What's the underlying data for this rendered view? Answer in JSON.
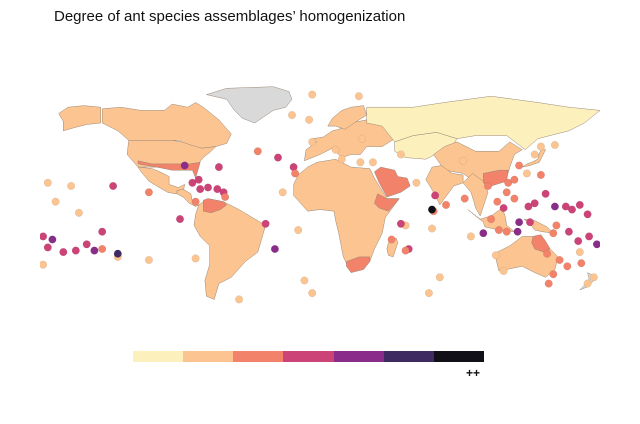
{
  "title": "Degree of ant species assemblages’ homogenization",
  "legend": {
    "colors": [
      "#fcf0bd",
      "#fbc490",
      "#f2826a",
      "#cc4477",
      "#8a2d8a",
      "#3f2b62",
      "#111018"
    ],
    "max_label": "++"
  },
  "map_colors": {
    "ocean": "#ffffff",
    "no_data": "#d9d9d9",
    "border": "#9a8878"
  },
  "regions": [
    {
      "name": "canada",
      "level": 1
    },
    {
      "name": "alaska",
      "level": 1
    },
    {
      "name": "greenland",
      "level": -1
    },
    {
      "name": "usa",
      "level": 1
    },
    {
      "name": "us-south",
      "level": 2
    },
    {
      "name": "mexico",
      "level": 1
    },
    {
      "name": "central-america",
      "level": 1
    },
    {
      "name": "south-america",
      "level": 1
    },
    {
      "name": "venezuela-colombia",
      "level": 2
    },
    {
      "name": "europe",
      "level": 1
    },
    {
      "name": "scandinavia",
      "level": 1
    },
    {
      "name": "africa",
      "level": 1
    },
    {
      "name": "arabia",
      "level": 2
    },
    {
      "name": "east-africa",
      "level": 2
    },
    {
      "name": "south-africa",
      "level": 2
    },
    {
      "name": "madagascar",
      "level": 1
    },
    {
      "name": "russia",
      "level": 0
    },
    {
      "name": "central-asia",
      "level": 0
    },
    {
      "name": "china",
      "level": 1
    },
    {
      "name": "india",
      "level": 1
    },
    {
      "name": "southeast-asia",
      "level": 1
    },
    {
      "name": "south-china",
      "level": 2
    },
    {
      "name": "japan",
      "level": 1
    },
    {
      "name": "indonesia",
      "level": 1
    },
    {
      "name": "new-guinea",
      "level": 1
    },
    {
      "name": "australia",
      "level": 1
    },
    {
      "name": "north-australia",
      "level": 2
    },
    {
      "name": "new-zealand",
      "level": -1
    }
  ],
  "islands": [
    {
      "lon": -5,
      "lat": 78,
      "level": 1
    },
    {
      "lon": 25,
      "lat": 77,
      "level": 1
    },
    {
      "lon": -18,
      "lat": 65,
      "level": 1
    },
    {
      "lon": -7,
      "lat": 62,
      "level": 1
    },
    {
      "lon": -65,
      "lat": 32,
      "level": 3
    },
    {
      "lon": -27,
      "lat": 38,
      "level": 3
    },
    {
      "lon": -17,
      "lat": 32,
      "level": 3
    },
    {
      "lon": -16,
      "lat": 28,
      "level": 2
    },
    {
      "lon": -24,
      "lat": 16,
      "level": 1
    },
    {
      "lon": -40,
      "lat": 42,
      "level": 2
    },
    {
      "lon": -160,
      "lat": 20,
      "level": 1
    },
    {
      "lon": -175,
      "lat": 22,
      "level": 1
    },
    {
      "lon": -170,
      "lat": 10,
      "level": 1
    },
    {
      "lon": -155,
      "lat": 3,
      "level": 1
    },
    {
      "lon": -133,
      "lat": 20,
      "level": 3
    },
    {
      "lon": -110,
      "lat": 16,
      "level": 2
    },
    {
      "lon": -87,
      "lat": 33,
      "level": 4
    },
    {
      "lon": -78,
      "lat": 24,
      "level": 3
    },
    {
      "lon": -82,
      "lat": 22,
      "level": 3
    },
    {
      "lon": -77,
      "lat": 18,
      "level": 3
    },
    {
      "lon": -72,
      "lat": 19,
      "level": 3
    },
    {
      "lon": -66,
      "lat": 18,
      "level": 3
    },
    {
      "lon": -62,
      "lat": 16,
      "level": 3
    },
    {
      "lon": -61,
      "lat": 13,
      "level": 2
    },
    {
      "lon": -80,
      "lat": 10,
      "level": 2
    },
    {
      "lon": -90,
      "lat": -1,
      "level": 3
    },
    {
      "lon": -80,
      "lat": -26,
      "level": 1
    },
    {
      "lon": -110,
      "lat": -27,
      "level": 1
    },
    {
      "lon": -130,
      "lat": -25,
      "level": 1
    },
    {
      "lon": -140,
      "lat": -9,
      "level": 3
    },
    {
      "lon": -150,
      "lat": -17,
      "level": 3
    },
    {
      "lon": -157,
      "lat": -21,
      "level": 3
    },
    {
      "lon": -172,
      "lat": -14,
      "level": 4
    },
    {
      "lon": -175,
      "lat": -19,
      "level": 3
    },
    {
      "lon": -178,
      "lat": -12,
      "level": 3
    },
    {
      "lon": -178,
      "lat": -30,
      "level": 1
    },
    {
      "lon": -165,
      "lat": -22,
      "level": 3
    },
    {
      "lon": -145,
      "lat": -21,
      "level": 4
    },
    {
      "lon": -130,
      "lat": -23,
      "level": 5
    },
    {
      "lon": -140,
      "lat": -20,
      "level": 2
    },
    {
      "lon": -35,
      "lat": -4,
      "level": 3
    },
    {
      "lon": -29,
      "lat": -20,
      "level": 4
    },
    {
      "lon": -14,
      "lat": -8,
      "level": 1
    },
    {
      "lon": -10,
      "lat": -40,
      "level": 1
    },
    {
      "lon": -5,
      "lat": -48,
      "level": 1
    },
    {
      "lon": -52,
      "lat": -52,
      "level": 1
    },
    {
      "lon": -5,
      "lat": 48,
      "level": 1
    },
    {
      "lon": 10,
      "lat": 43,
      "level": 1
    },
    {
      "lon": 14,
      "lat": 37,
      "level": 1
    },
    {
      "lon": 26,
      "lat": 35,
      "level": 1
    },
    {
      "lon": 34,
      "lat": 35,
      "level": 1
    },
    {
      "lon": 27,
      "lat": 50,
      "level": 1
    },
    {
      "lon": 52,
      "lat": 40,
      "level": 1
    },
    {
      "lon": 62,
      "lat": 22,
      "level": 1
    },
    {
      "lon": 55,
      "lat": -5,
      "level": 1
    },
    {
      "lon": 52,
      "lat": -4,
      "level": 3
    },
    {
      "lon": 46,
      "lat": -14,
      "level": 2
    },
    {
      "lon": 57,
      "lat": -20,
      "level": 3
    },
    {
      "lon": 55,
      "lat": -21,
      "level": 2
    },
    {
      "lon": 73,
      "lat": 4,
      "level": 2
    },
    {
      "lon": 74,
      "lat": 14,
      "level": 3
    },
    {
      "lon": 72,
      "lat": 5,
      "level": 6
    },
    {
      "lon": 81,
      "lat": 8,
      "level": 2
    },
    {
      "lon": 72,
      "lat": -7,
      "level": 1
    },
    {
      "lon": 77,
      "lat": -38,
      "level": 1
    },
    {
      "lon": 70,
      "lat": -48,
      "level": 1
    },
    {
      "lon": 93,
      "lat": 12,
      "level": 2
    },
    {
      "lon": 105,
      "lat": -10,
      "level": 4
    },
    {
      "lon": 97,
      "lat": -12,
      "level": 1
    },
    {
      "lon": 121,
      "lat": 22,
      "level": 2
    },
    {
      "lon": 125,
      "lat": 24,
      "level": 2
    },
    {
      "lon": 133,
      "lat": 28,
      "level": 1
    },
    {
      "lon": 142,
      "lat": 27,
      "level": 2
    },
    {
      "lon": 145,
      "lat": 15,
      "level": 3
    },
    {
      "lon": 138,
      "lat": 9,
      "level": 3
    },
    {
      "lon": 134,
      "lat": 7,
      "level": 3
    },
    {
      "lon": 151,
      "lat": 7,
      "level": 4
    },
    {
      "lon": 158,
      "lat": 7,
      "level": 3
    },
    {
      "lon": 162,
      "lat": 5,
      "level": 3
    },
    {
      "lon": 167,
      "lat": 8,
      "level": 3
    },
    {
      "lon": 172,
      "lat": 2,
      "level": 3
    },
    {
      "lon": 160,
      "lat": -9,
      "level": 3
    },
    {
      "lon": 166,
      "lat": -15,
      "level": 3
    },
    {
      "lon": 167,
      "lat": -22,
      "level": 1
    },
    {
      "lon": 178,
      "lat": -17,
      "level": 4
    },
    {
      "lon": 173,
      "lat": -12,
      "level": 3
    },
    {
      "lon": 159,
      "lat": -31,
      "level": 2
    },
    {
      "lon": 168,
      "lat": -29,
      "level": 2
    },
    {
      "lon": 172,
      "lat": -42,
      "level": 1
    },
    {
      "lon": 176,
      "lat": -38,
      "level": 1
    },
    {
      "lon": 127,
      "lat": -9,
      "level": 4
    },
    {
      "lon": 120,
      "lat": -9,
      "level": 2
    },
    {
      "lon": 115,
      "lat": -8,
      "level": 2
    },
    {
      "lon": 125,
      "lat": 12,
      "level": 2
    },
    {
      "lon": 120,
      "lat": 16,
      "level": 2
    },
    {
      "lon": 114,
      "lat": 10,
      "level": 2
    },
    {
      "lon": 118,
      "lat": 6,
      "level": 3
    },
    {
      "lon": 110,
      "lat": -1,
      "level": 2
    },
    {
      "lon": 152,
      "lat": -5,
      "level": 2
    },
    {
      "lon": 150,
      "lat": -10,
      "level": 2
    },
    {
      "lon": 135,
      "lat": -3,
      "level": 3
    },
    {
      "lon": 128,
      "lat": -3,
      "level": 4
    },
    {
      "lon": 146,
      "lat": -23,
      "level": 2
    },
    {
      "lon": 154,
      "lat": -27,
      "level": 2
    },
    {
      "lon": 150,
      "lat": -36,
      "level": 2
    },
    {
      "lon": 147,
      "lat": -42,
      "level": 2
    },
    {
      "lon": 113,
      "lat": -24,
      "level": 1
    },
    {
      "lon": 118,
      "lat": -34,
      "level": 1
    },
    {
      "lon": 92,
      "lat": 36,
      "level": 1
    },
    {
      "lon": 108,
      "lat": 20,
      "level": 2
    },
    {
      "lon": 128,
      "lat": 33,
      "level": 2
    },
    {
      "lon": 138,
      "lat": 40,
      "level": 1
    },
    {
      "lon": 142,
      "lat": 45,
      "level": 1
    },
    {
      "lon": 151,
      "lat": 46,
      "level": 1
    }
  ]
}
